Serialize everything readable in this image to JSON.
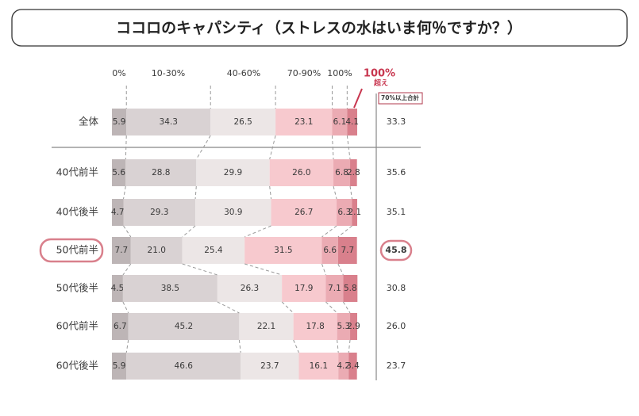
{
  "chart_data": {
    "type": "stacked-bar",
    "title": "ココロのキャパシティ（ストレスの水はいま何％ですか？）",
    "categories": [
      "全体",
      "40代前半",
      "40代後半",
      "50代前半",
      "50代後半",
      "60代前半",
      "60代後半"
    ],
    "xlim": [
      0,
      100
    ],
    "highlight_category": 3,
    "series": [
      {
        "name": "0%",
        "color": "#bdb5b6",
        "values": [
          5.9,
          5.6,
          4.7,
          7.7,
          4.5,
          6.7,
          5.9
        ],
        "value_labels": [
          "5.9",
          "5.6",
          "4.7",
          "7.7",
          "4.5",
          "6.7",
          "5.9"
        ]
      },
      {
        "name": "10-30%",
        "color": "#d9d2d3",
        "values": [
          34.3,
          28.8,
          29.3,
          21.0,
          38.5,
          45.2,
          46.6
        ],
        "value_labels": [
          "34.3",
          "28.8",
          "29.3",
          "21.0",
          "38.5",
          "45.2",
          "46.6"
        ]
      },
      {
        "name": "40-60%",
        "color": "#ece6e6",
        "values": [
          26.5,
          29.9,
          30.9,
          25.4,
          26.3,
          22.1,
          23.7
        ],
        "value_labels": [
          "26.5",
          "29.9",
          "30.9",
          "25.4",
          "26.3",
          "22.1",
          "23.7"
        ]
      },
      {
        "name": "70-90%",
        "color": "#f7c9ce",
        "values": [
          23.1,
          26.0,
          26.7,
          31.5,
          17.9,
          17.8,
          16.1
        ],
        "value_labels": [
          "23.1",
          "26.0",
          "26.7",
          "31.5",
          "17.9",
          "17.8",
          "16.1"
        ]
      },
      {
        "name": "100%",
        "color": "#ebabb3",
        "values": [
          6.1,
          6.8,
          6.3,
          6.6,
          7.1,
          5.3,
          4.2
        ],
        "value_labels": [
          "6.1",
          "6.8",
          "6.3",
          "6.6",
          "7.1",
          "5.3",
          "4.2"
        ]
      },
      {
        "name": "100%",
        "sub_name": "超え",
        "color": "#d9808c",
        "values": [
          4.1,
          2.8,
          2.1,
          7.7,
          5.8,
          2.9,
          3.4
        ],
        "value_labels": [
          "4.1",
          "2.8",
          "2.1",
          "7.7",
          "5.8",
          "2.9",
          "3.4"
        ]
      }
    ],
    "totals": {
      "name": "70%以上合計",
      "values": [
        33.3,
        35.6,
        35.1,
        45.8,
        30.8,
        26.0,
        23.7
      ],
      "value_labels": [
        "33.3",
        "35.6",
        "35.1",
        "45.8",
        "30.8",
        "26.0",
        "23.7"
      ]
    }
  }
}
